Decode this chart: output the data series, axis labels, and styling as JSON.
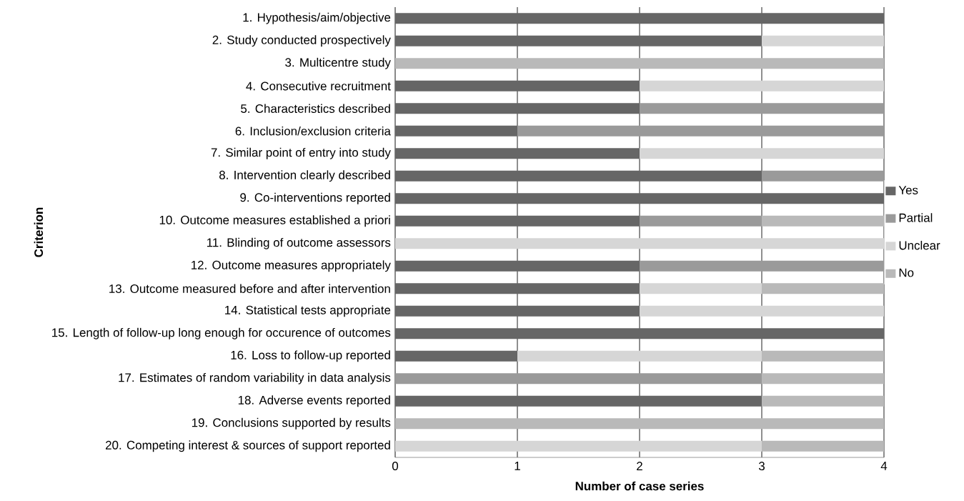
{
  "chart_data": {
    "type": "bar",
    "orientation": "horizontal",
    "stacked": true,
    "xlabel": "Number of case series",
    "ylabel": "Criterion",
    "categories": [
      "1. Hypothesis/aim/objective",
      "2. Study conducted prospectively",
      "3. Multicentre study",
      "4. Consecutive recruitment",
      "5. Characteristics described",
      "6. Inclusion/exclusion criteria",
      "7. Similar point of entry into study",
      "8. Intervention clearly described",
      "9. Co-interventions reported",
      "10. Outcome measures established a priori",
      "11. Blinding of outcome assessors",
      "12. Outcome measures appropriately",
      "13. Outcome measured before and after intervention",
      "14. Statistical tests appropriate",
      "15. Length of follow-up long enough for occurence of outcomes",
      "16. Loss to follow-up reported",
      "17. Estimates of random variability in data analysis",
      "18. Adverse events reported",
      "19. Conclusions supported by results",
      "20. Competing interest & sources of support reported"
    ],
    "series": [
      {
        "name": "Yes",
        "color": "#666666",
        "values": [
          4,
          3,
          0,
          2,
          2,
          1,
          2,
          3,
          4,
          2,
          0,
          2,
          2,
          2,
          4,
          1,
          0,
          3,
          0,
          0
        ]
      },
      {
        "name": "Partial",
        "color": "#9a9a9a",
        "values": [
          0,
          0,
          0,
          0,
          2,
          3,
          0,
          1,
          0,
          1,
          0,
          2,
          0,
          0,
          0,
          0,
          3,
          0,
          0,
          0
        ]
      },
      {
        "name": "Unclear",
        "color": "#d6d6d6",
        "values": [
          0,
          1,
          0,
          2,
          0,
          0,
          2,
          0,
          0,
          0,
          4,
          0,
          1,
          2,
          0,
          2,
          0,
          0,
          0,
          3
        ]
      },
      {
        "name": "No",
        "color": "#b9b9b9",
        "values": [
          0,
          0,
          4,
          0,
          0,
          0,
          0,
          0,
          0,
          1,
          0,
          0,
          1,
          0,
          0,
          1,
          1,
          1,
          4,
          1
        ]
      }
    ],
    "xlim": [
      0,
      4
    ],
    "xticks": [
      0,
      1,
      2,
      3,
      4
    ],
    "grid": "x",
    "legend": "right"
  }
}
